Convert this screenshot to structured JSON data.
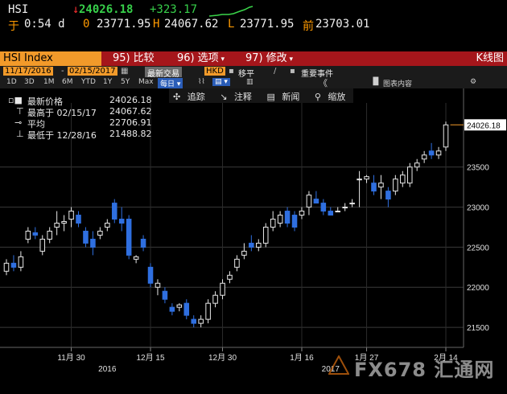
{
  "quote": {
    "ticker": "HSI",
    "down_arrow": "↓",
    "last": "24026.18",
    "change": "+323.17",
    "time_prefix": "于",
    "time": "0:54 d",
    "open_label": "0",
    "open": "23771.95",
    "high_label": "H",
    "high": "24067.62",
    "low_label": "L",
    "low": "23771.95",
    "prev_label": "前",
    "prev": "23703.01"
  },
  "function_bar": {
    "security": "HSI Index",
    "compare_num": "95)",
    "compare": "比较",
    "options_num": "96)",
    "options": "选项",
    "edit_num": "97)",
    "edit": "修改",
    "chart_type": "K线图"
  },
  "range_bar": {
    "start_date": "11/17/2016",
    "end_date": "02/15/2017",
    "last_trade": "最新交易",
    "currency": "HKD",
    "shift": "移平",
    "events": "重要事件"
  },
  "period_bar": {
    "periods": [
      "1D",
      "3D",
      "1M",
      "6M",
      "YTD",
      "1Y",
      "5Y",
      "Max"
    ],
    "frequency": "每日",
    "collapse": "《",
    "chart_content": "图表内容"
  },
  "chart_toolbar": {
    "track": "追踪",
    "annotate": "注释",
    "news": "新闻",
    "zoom": "缩放"
  },
  "legend": {
    "last_label": "最新价格",
    "last_value": "24026.18",
    "high_label": "最高于 02/15/17",
    "high_value": "24067.62",
    "avg_label": "平均",
    "avg_value": "22706.91",
    "low_label": "最低于 12/28/16",
    "low_value": "21488.82"
  },
  "watermark": "FX678 汇通网",
  "chart_data": {
    "type": "candlestick",
    "ylim": [
      21250,
      24300
    ],
    "yticks": [
      21500,
      22000,
      22500,
      23000,
      23500
    ],
    "last_price_tag": "24026.18",
    "x_labels": [
      "11月 30",
      "12月 15",
      "12月 30",
      "1月 16",
      "1月 27",
      "2月 14"
    ],
    "x_label_index": [
      9,
      20,
      30,
      41,
      50,
      61
    ],
    "year_labels": [
      {
        "text": "2016",
        "index": 14
      },
      {
        "text": "2017",
        "index": 45
      }
    ],
    "candles": [
      [
        22200,
        22350,
        22150,
        22300
      ],
      [
        22300,
        22400,
        22200,
        22250
      ],
      [
        22250,
        22450,
        22200,
        22380
      ],
      [
        22600,
        22750,
        22550,
        22700
      ],
      [
        22680,
        22750,
        22600,
        22650
      ],
      [
        22450,
        22650,
        22400,
        22600
      ],
      [
        22600,
        22750,
        22550,
        22700
      ],
      [
        22750,
        22950,
        22650,
        22800
      ],
      [
        22800,
        22900,
        22700,
        22820
      ],
      [
        22850,
        23000,
        22750,
        22950
      ],
      [
        22900,
        22950,
        22750,
        22800
      ],
      [
        22700,
        22750,
        22500,
        22550
      ],
      [
        22600,
        22700,
        22400,
        22500
      ],
      [
        22650,
        22750,
        22600,
        22700
      ],
      [
        22750,
        22850,
        22700,
        22800
      ],
      [
        23050,
        23100,
        22800,
        22850
      ],
      [
        22850,
        23000,
        22700,
        22800
      ],
      [
        22850,
        22900,
        22350,
        22400
      ],
      [
        22350,
        22400,
        22300,
        22380
      ],
      [
        22600,
        22650,
        22450,
        22500
      ],
      [
        22250,
        22300,
        22000,
        22050
      ],
      [
        22000,
        22100,
        21900,
        22050
      ],
      [
        21950,
        22000,
        21800,
        21850
      ],
      [
        21750,
        21800,
        21650,
        21700
      ],
      [
        21750,
        21800,
        21700,
        21780
      ],
      [
        21800,
        21850,
        21600,
        21650
      ],
      [
        21600,
        21650,
        21500,
        21550
      ],
      [
        21550,
        21650,
        21500,
        21600
      ],
      [
        21600,
        21850,
        21550,
        21800
      ],
      [
        21800,
        21950,
        21750,
        21900
      ],
      [
        21900,
        22100,
        21850,
        22050
      ],
      [
        22100,
        22200,
        22050,
        22150
      ],
      [
        22250,
        22400,
        22200,
        22350
      ],
      [
        22400,
        22550,
        22350,
        22450
      ],
      [
        22550,
        22650,
        22450,
        22500
      ],
      [
        22500,
        22600,
        22450,
        22550
      ],
      [
        22550,
        22800,
        22500,
        22750
      ],
      [
        22750,
        22950,
        22700,
        22850
      ],
      [
        22800,
        22950,
        22750,
        22900
      ],
      [
        22950,
        23000,
        22750,
        22800
      ],
      [
        22900,
        22950,
        22700,
        22750
      ],
      [
        22900,
        23000,
        22850,
        22950
      ],
      [
        23000,
        23200,
        22900,
        23150
      ],
      [
        23100,
        23200,
        23050,
        23050
      ],
      [
        23050,
        23100,
        22900,
        22950
      ],
      [
        22950,
        23000,
        22900,
        22900
      ],
      [
        22950,
        23000,
        22950,
        22950
      ],
      [
        23000,
        23050,
        22950,
        23000
      ],
      [
        23050,
        23100,
        23000,
        23050
      ],
      [
        23350,
        23450,
        23000,
        23350
      ],
      [
        23350,
        23400,
        23300,
        23380
      ],
      [
        23300,
        23400,
        23150,
        23200
      ],
      [
        23250,
        23400,
        23100,
        23300
      ],
      [
        23200,
        23250,
        23000,
        23100
      ],
      [
        23200,
        23400,
        23150,
        23350
      ],
      [
        23300,
        23450,
        23250,
        23400
      ],
      [
        23300,
        23550,
        23250,
        23500
      ],
      [
        23500,
        23600,
        23450,
        23550
      ],
      [
        23600,
        23700,
        23550,
        23650
      ],
      [
        23700,
        23800,
        23600,
        23650
      ],
      [
        23650,
        23750,
        23600,
        23700
      ],
      [
        23750,
        24067,
        23700,
        24026
      ]
    ]
  }
}
